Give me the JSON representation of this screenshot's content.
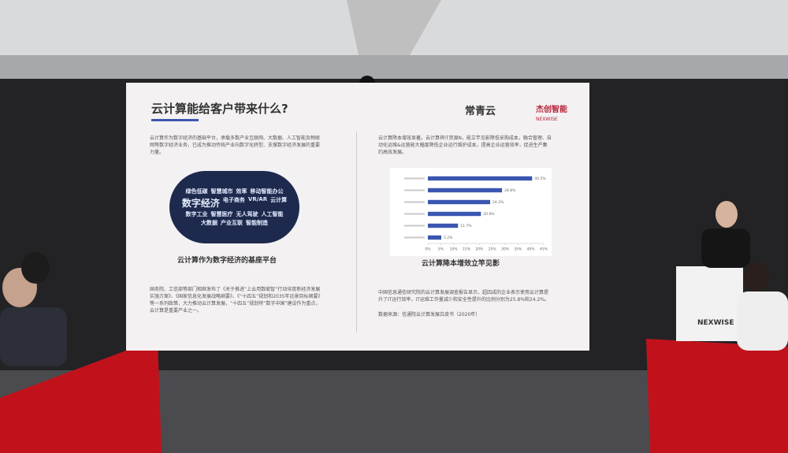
{
  "slide": {
    "title": "云计算能给客户带来什么?",
    "logo_text": "常青云",
    "brand_cn": "杰创智能",
    "brand_en": "NEXWISE",
    "left": {
      "intro": "云计算作为数字经济的基础平台，承载多数产业互联网、大数据、人工智能及物联网等数字经济业务，已成为推动传统产业向数字化转型、支撑数字经济发展的重要力量。",
      "cloud_words": [
        "绿色低碳",
        "智慧城市",
        "效率",
        "移动智能办公",
        "数字经济",
        "电子商务",
        "VR/AR",
        "云计算",
        "数字工业",
        "智慧医疗",
        "无人驾驶",
        "人工智能",
        "大数据",
        "产业互联",
        "智能制造"
      ],
      "cloud_caption": "云计算作为数字经济的基座平台",
      "policy": "国务院、工信部等部门相继发布了《关于推进“上云用数赋智”行动培育新经济发展实施方案》、《国家信息化发展战略纲要》、《“十四五”规划和2035年远景目标纲要》等一系列政策，大力推动云计算发展，“十四五”规划将“数字中国”建设作为重点，云计算是重要产业之一。"
    },
    "right": {
      "intro": "云计算降本增效显著。云计算将IT资源N，能立竿见影降低采购成本，融合管理、自动化运维&运营能大幅度降低企业运行维护成本，提高企业运营效率，促进生产集约高效发展。",
      "chart_caption": "云计算降本增效立竿见影",
      "report": "中国信息通信研究院的云计算发展调查报告显示，超四成的企业表示使用云计算提升了IT运行效率，IT运维工作量减少和安全性提升的比例分别为25.8%和24.2%。",
      "source": "数据来源：信通院云计算发展白皮书（2020年）"
    }
  },
  "podium": {
    "brand_en": "NEXWISE"
  },
  "chart_data": {
    "type": "bar",
    "orientation": "horizontal",
    "categories": [
      null,
      null,
      null,
      null,
      null,
      null
    ],
    "values": [
      40.5,
      28.8,
      24.2,
      20.6,
      11.7,
      5.2
    ],
    "value_labels": [
      "40.5%",
      "28.8%",
      "24.2%",
      "20.6%",
      "11.7%",
      "5.2%"
    ],
    "color": "#3b56b0",
    "xlim": [
      0,
      45
    ],
    "xticks": [
      {
        "value": 0,
        "label": "0%"
      },
      {
        "value": 5,
        "label": "5%"
      },
      {
        "value": 10,
        "label": "10%"
      },
      {
        "value": 15,
        "label": "15%"
      },
      {
        "value": 20,
        "label": "20%"
      },
      {
        "value": 25,
        "label": "25%"
      },
      {
        "value": 30,
        "label": "30%"
      },
      {
        "value": 35,
        "label": "35%"
      },
      {
        "value": 40,
        "label": "40%"
      },
      {
        "value": 45,
        "label": "45%"
      }
    ]
  }
}
